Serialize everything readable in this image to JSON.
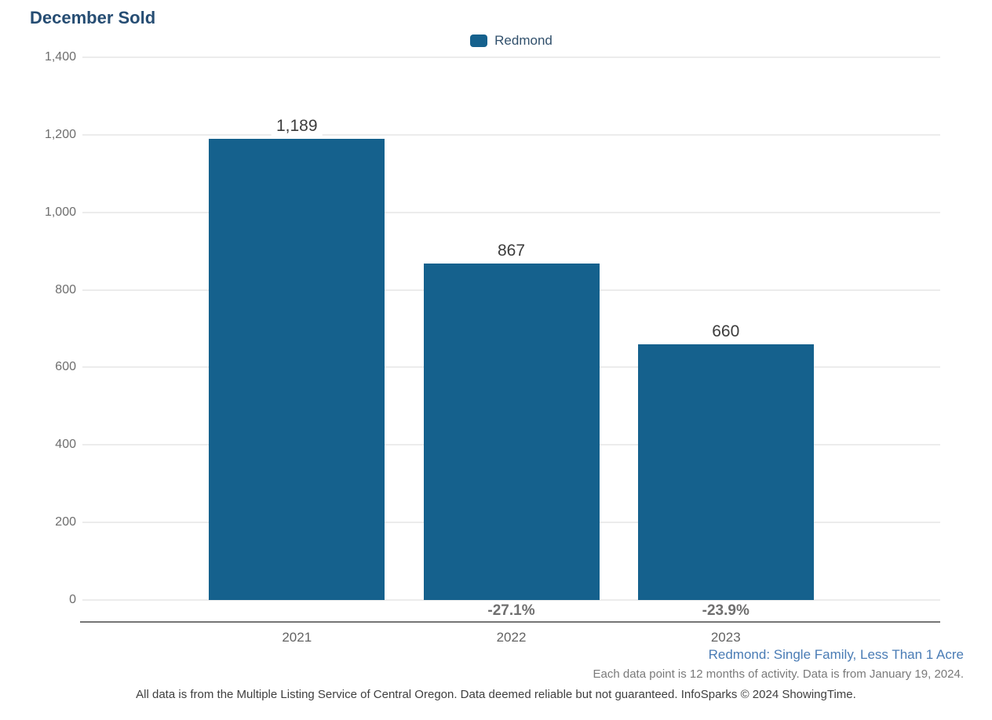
{
  "title": "December Sold",
  "legend": {
    "items": [
      {
        "label": "Redmond"
      }
    ]
  },
  "chart_data": {
    "type": "bar",
    "title": "December Sold",
    "categories": [
      "2021",
      "2022",
      "2023"
    ],
    "series": [
      {
        "name": "Redmond",
        "values": [
          1189,
          867,
          660
        ]
      }
    ],
    "value_labels": [
      "1,189",
      "867",
      "660"
    ],
    "pct_change_labels": [
      "",
      "-27.1%",
      "-23.9%"
    ],
    "xlabel": "",
    "ylabel": "",
    "ylim": [
      0,
      1400
    ],
    "ytick_step": 200,
    "ytick_labels": [
      "0",
      "200",
      "400",
      "600",
      "800",
      "1,000",
      "1,200",
      "1,400"
    ],
    "grid": "horizontal",
    "legend_position": "top-center"
  },
  "footnotes": {
    "segment": "Redmond: Single Family, Less Than 1 Acre",
    "data_note": "Each data point is 12 months of activity. Data is from January 19, 2024.",
    "disclaimer": "All data is from the Multiple Listing Service of Central Oregon. Data deemed reliable but not guaranteed. InfoSparks © 2024 ShowingTime."
  },
  "colors": {
    "bar": "#15618d",
    "title_text": "#264d73",
    "segment_text": "#4a7cb5",
    "gridline": "#ececec",
    "axis_line": "#757575"
  }
}
